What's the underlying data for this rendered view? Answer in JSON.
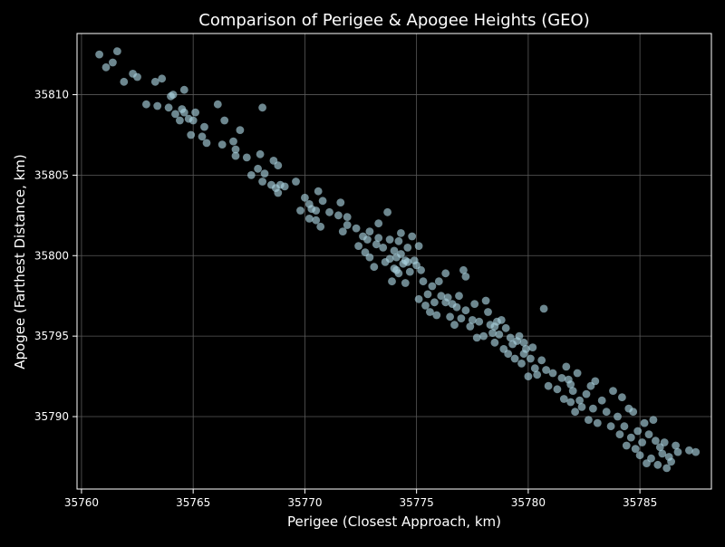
{
  "chart_data": {
    "type": "scatter",
    "title": "Comparison of Perigee & Apogee Heights (GEO)",
    "xlabel": "Perigee (Closest Approach, km)",
    "ylabel": "Apogee (Farthest Distance, km)",
    "xlim": [
      35759.8,
      35788.2
    ],
    "ylim": [
      35785.5,
      35813.8
    ],
    "xticks": [
      35760,
      35765,
      35770,
      35775,
      35780,
      35785
    ],
    "yticks": [
      35790,
      35795,
      35800,
      35805,
      35810
    ],
    "grid": true,
    "colors": {
      "background": "#000000",
      "axes": "#ffffff",
      "grid": "#5a5a5a",
      "marker": "#a8cfdc"
    },
    "points": [
      [
        35760.8,
        35812.5
      ],
      [
        35761.1,
        35811.7
      ],
      [
        35761.4,
        35812.0
      ],
      [
        35761.6,
        35812.7
      ],
      [
        35761.9,
        35810.8
      ],
      [
        35762.3,
        35811.3
      ],
      [
        35762.5,
        35811.1
      ],
      [
        35762.9,
        35809.4
      ],
      [
        35763.3,
        35810.8
      ],
      [
        35763.4,
        35809.3
      ],
      [
        35763.6,
        35811.0
      ],
      [
        35763.9,
        35809.2
      ],
      [
        35764.0,
        35809.9
      ],
      [
        35764.1,
        35810.0
      ],
      [
        35764.2,
        35808.8
      ],
      [
        35764.4,
        35808.4
      ],
      [
        35764.5,
        35809.1
      ],
      [
        35764.6,
        35810.3
      ],
      [
        35764.6,
        35808.9
      ],
      [
        35764.8,
        35808.5
      ],
      [
        35764.9,
        35807.5
      ],
      [
        35765.0,
        35808.4
      ],
      [
        35765.1,
        35808.9
      ],
      [
        35765.4,
        35807.4
      ],
      [
        35765.6,
        35807.0
      ],
      [
        35765.5,
        35808.0
      ],
      [
        35766.1,
        35809.4
      ],
      [
        35766.3,
        35806.9
      ],
      [
        35766.4,
        35808.4
      ],
      [
        35766.8,
        35807.1
      ],
      [
        35766.9,
        35806.2
      ],
      [
        35766.9,
        35806.6
      ],
      [
        35767.1,
        35807.8
      ],
      [
        35767.4,
        35806.1
      ],
      [
        35767.6,
        35805.0
      ],
      [
        35767.9,
        35805.4
      ],
      [
        35768.0,
        35806.3
      ],
      [
        35768.1,
        35804.6
      ],
      [
        35768.1,
        35809.2
      ],
      [
        35768.2,
        35805.1
      ],
      [
        35768.5,
        35804.4
      ],
      [
        35768.6,
        35805.9
      ],
      [
        35768.7,
        35804.2
      ],
      [
        35768.8,
        35803.9
      ],
      [
        35768.9,
        35804.4
      ],
      [
        35768.8,
        35805.6
      ],
      [
        35769.1,
        35804.3
      ],
      [
        35769.6,
        35804.6
      ],
      [
        35769.8,
        35802.8
      ],
      [
        35770.0,
        35803.6
      ],
      [
        35770.2,
        35802.3
      ],
      [
        35770.2,
        35803.2
      ],
      [
        35770.3,
        35802.9
      ],
      [
        35770.5,
        35802.8
      ],
      [
        35770.6,
        35804.0
      ],
      [
        35770.5,
        35802.2
      ],
      [
        35770.7,
        35801.8
      ],
      [
        35770.8,
        35803.4
      ],
      [
        35771.1,
        35802.7
      ],
      [
        35771.5,
        35802.5
      ],
      [
        35771.6,
        35803.3
      ],
      [
        35771.7,
        35801.5
      ],
      [
        35771.9,
        35801.9
      ],
      [
        35771.9,
        35802.4
      ],
      [
        35772.3,
        35801.7
      ],
      [
        35772.4,
        35800.6
      ],
      [
        35772.6,
        35801.2
      ],
      [
        35772.7,
        35800.2
      ],
      [
        35772.8,
        35801.0
      ],
      [
        35772.9,
        35799.9
      ],
      [
        35772.9,
        35801.5
      ],
      [
        35773.1,
        35799.3
      ],
      [
        35773.2,
        35800.7
      ],
      [
        35773.3,
        35801.1
      ],
      [
        35773.3,
        35802.0
      ],
      [
        35773.5,
        35800.5
      ],
      [
        35773.6,
        35799.6
      ],
      [
        35773.7,
        35802.7
      ],
      [
        35773.8,
        35801.0
      ],
      [
        35773.8,
        35799.8
      ],
      [
        35773.9,
        35798.4
      ],
      [
        35774.0,
        35800.3
      ],
      [
        35774.0,
        35799.2
      ],
      [
        35774.1,
        35799.9
      ],
      [
        35774.2,
        35800.9
      ],
      [
        35774.2,
        35798.9
      ],
      [
        35774.3,
        35801.4
      ],
      [
        35774.3,
        35800.1
      ],
      [
        35774.4,
        35799.5
      ],
      [
        35774.5,
        35798.3
      ],
      [
        35774.5,
        35799.7
      ],
      [
        35774.6,
        35800.5
      ],
      [
        35774.7,
        35799.0
      ],
      [
        35774.8,
        35801.2
      ],
      [
        35774.9,
        35799.7
      ],
      [
        35775.0,
        35799.4
      ],
      [
        35775.1,
        35800.6
      ],
      [
        35775.1,
        35797.3
      ],
      [
        35775.2,
        35799.1
      ],
      [
        35775.3,
        35798.4
      ],
      [
        35775.4,
        35796.9
      ],
      [
        35775.5,
        35797.6
      ],
      [
        35775.6,
        35796.5
      ],
      [
        35775.7,
        35798.1
      ],
      [
        35775.8,
        35797.1
      ],
      [
        35775.9,
        35796.3
      ],
      [
        35776.0,
        35798.4
      ],
      [
        35776.1,
        35797.5
      ],
      [
        35776.3,
        35797.1
      ],
      [
        35776.3,
        35798.9
      ],
      [
        35776.5,
        35796.2
      ],
      [
        35776.6,
        35797.0
      ],
      [
        35776.7,
        35795.7
      ],
      [
        35776.8,
        35796.8
      ],
      [
        35776.9,
        35797.5
      ],
      [
        35777.0,
        35796.1
      ],
      [
        35777.1,
        35799.1
      ],
      [
        35777.2,
        35798.7
      ],
      [
        35777.2,
        35796.6
      ],
      [
        35777.4,
        35795.6
      ],
      [
        35777.5,
        35796.0
      ],
      [
        35777.6,
        35797.0
      ],
      [
        35777.7,
        35794.9
      ],
      [
        35777.8,
        35795.9
      ],
      [
        35778.0,
        35795.0
      ],
      [
        35778.1,
        35797.2
      ],
      [
        35778.2,
        35796.5
      ],
      [
        35778.3,
        35795.7
      ],
      [
        35778.4,
        35795.2
      ],
      [
        35778.5,
        35794.6
      ],
      [
        35778.6,
        35795.9
      ],
      [
        35778.7,
        35795.1
      ],
      [
        35778.8,
        35796.0
      ],
      [
        35778.9,
        35794.2
      ],
      [
        35779.0,
        35795.5
      ],
      [
        35779.1,
        35793.9
      ],
      [
        35779.2,
        35794.9
      ],
      [
        35779.3,
        35794.5
      ],
      [
        35779.4,
        35793.6
      ],
      [
        35779.5,
        35794.7
      ],
      [
        35779.6,
        35795.0
      ],
      [
        35779.7,
        35793.3
      ],
      [
        35779.8,
        35793.9
      ],
      [
        35779.9,
        35794.2
      ],
      [
        35780.0,
        35792.5
      ],
      [
        35780.1,
        35793.6
      ],
      [
        35780.2,
        35794.3
      ],
      [
        35780.3,
        35793.0
      ],
      [
        35780.4,
        35792.6
      ],
      [
        35780.6,
        35793.5
      ],
      [
        35780.7,
        35796.7
      ],
      [
        35780.8,
        35792.9
      ],
      [
        35780.9,
        35791.9
      ],
      [
        35781.1,
        35792.7
      ],
      [
        35781.3,
        35791.7
      ],
      [
        35781.5,
        35792.4
      ],
      [
        35781.6,
        35791.1
      ],
      [
        35781.7,
        35793.1
      ],
      [
        35781.8,
        35792.3
      ],
      [
        35781.9,
        35790.9
      ],
      [
        35782.0,
        35791.6
      ],
      [
        35782.1,
        35790.3
      ],
      [
        35782.2,
        35792.7
      ],
      [
        35782.3,
        35791.0
      ],
      [
        35782.4,
        35790.6
      ],
      [
        35782.6,
        35791.4
      ],
      [
        35782.7,
        35789.8
      ],
      [
        35782.8,
        35791.9
      ],
      [
        35782.9,
        35790.5
      ],
      [
        35783.0,
        35792.2
      ],
      [
        35783.1,
        35789.6
      ],
      [
        35783.3,
        35791.0
      ],
      [
        35783.5,
        35790.3
      ],
      [
        35783.7,
        35789.4
      ],
      [
        35783.8,
        35791.6
      ],
      [
        35784.0,
        35790.0
      ],
      [
        35784.1,
        35788.9
      ],
      [
        35784.2,
        35791.2
      ],
      [
        35784.3,
        35789.4
      ],
      [
        35784.4,
        35788.2
      ],
      [
        35784.5,
        35790.5
      ],
      [
        35784.6,
        35788.7
      ],
      [
        35784.7,
        35790.3
      ],
      [
        35784.8,
        35788.0
      ],
      [
        35784.9,
        35789.1
      ],
      [
        35785.0,
        35787.6
      ],
      [
        35785.1,
        35788.4
      ],
      [
        35785.2,
        35789.6
      ],
      [
        35785.3,
        35787.1
      ],
      [
        35785.4,
        35788.9
      ],
      [
        35785.5,
        35787.4
      ],
      [
        35785.6,
        35789.8
      ],
      [
        35785.7,
        35788.5
      ],
      [
        35785.8,
        35787.0
      ],
      [
        35785.9,
        35788.1
      ],
      [
        35786.0,
        35787.7
      ],
      [
        35786.1,
        35788.4
      ],
      [
        35786.2,
        35786.8
      ],
      [
        35786.3,
        35787.5
      ],
      [
        35786.4,
        35787.2
      ],
      [
        35786.6,
        35788.2
      ],
      [
        35786.7,
        35787.8
      ],
      [
        35787.2,
        35787.9
      ],
      [
        35787.5,
        35787.8
      ],
      [
        35774.6,
        35799.6
      ],
      [
        35774.1,
        35799.1
      ],
      [
        35776.4,
        35797.4
      ],
      [
        35778.5,
        35795.6
      ],
      [
        35779.8,
        35794.6
      ],
      [
        35781.9,
        35792.0
      ]
    ]
  }
}
